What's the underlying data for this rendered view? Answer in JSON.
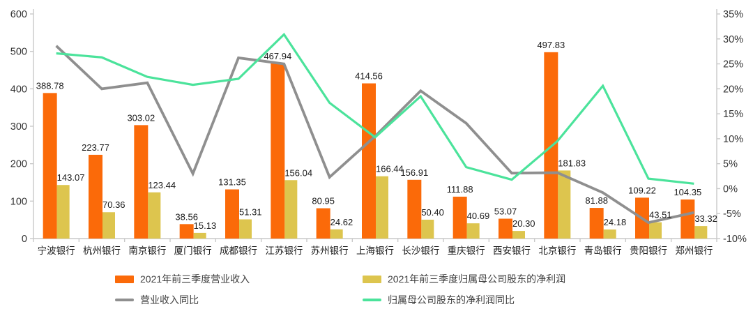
{
  "chart_data": {
    "type": "bar",
    "subtype": "combo-bar-line-dual-axis",
    "title": "",
    "categories": [
      "宁波银行",
      "杭州银行",
      "南京银行",
      "厦门银行",
      "成都银行",
      "江苏银行",
      "苏州银行",
      "上海银行",
      "长沙银行",
      "重庆银行",
      "西安银行",
      "北京银行",
      "青岛银行",
      "贵阳银行",
      "郑州银行"
    ],
    "series": [
      {
        "name": "2021年前三季度营业收入",
        "type": "bar",
        "axis": "left",
        "color": "#fb6a09",
        "values": [
          388.78,
          223.77,
          303.02,
          38.56,
          131.35,
          467.94,
          80.95,
          414.56,
          156.91,
          111.88,
          53.07,
          497.83,
          81.88,
          109.22,
          104.35
        ],
        "value_labels": [
          "388.78",
          "223.77",
          "303.02",
          "38.56",
          "131.35",
          "467.94",
          "80.95",
          "414.56",
          "156.91",
          "111.88",
          "53.07",
          "497.83",
          "81.88",
          "109.22",
          "104.35"
        ]
      },
      {
        "name": "2021年前三季度归属母公司股东的净利润",
        "type": "bar",
        "axis": "left",
        "color": "#ddc54e",
        "values": [
          143.07,
          70.36,
          123.44,
          15.13,
          51.31,
          156.04,
          24.62,
          166.44,
          50.4,
          40.69,
          20.3,
          181.83,
          24.18,
          43.51,
          33.32
        ],
        "value_labels": [
          "143.07",
          "70.36",
          "123.44",
          "15.13",
          "51.31",
          "156.04",
          "24.62",
          "166.44",
          "50.40",
          "40.69",
          "20.30",
          "181.83",
          "24.18",
          "43.51",
          "33.32"
        ]
      },
      {
        "name": "营业收入同比",
        "type": "line",
        "axis": "right",
        "color": "#8f8f8f",
        "stroke_width": 3.8,
        "values_pct_estimated": [
          28.6,
          20.0,
          21.2,
          3.0,
          26.2,
          25.0,
          2.3,
          10.5,
          19.6,
          13.1,
          3.1,
          3.2,
          -0.8,
          -6.8,
          -4.8
        ]
      },
      {
        "name": "归属母公司股东的净利润同比",
        "type": "line",
        "axis": "right",
        "color": "#4be39b",
        "stroke_width": 3.2,
        "values_pct_estimated": [
          27.1,
          26.3,
          22.4,
          20.8,
          22.0,
          30.9,
          17.2,
          10.3,
          18.5,
          4.3,
          1.8,
          9.5,
          20.6,
          2.0,
          1.0
        ]
      }
    ],
    "left_axis": {
      "min": 0,
      "max": 600,
      "tick_step": 100,
      "tick_labels": [
        "0",
        "100",
        "200",
        "300",
        "400",
        "500",
        "600"
      ]
    },
    "right_axis": {
      "min": -10,
      "max": 35,
      "tick_step": 5,
      "tick_labels": [
        "-10%",
        "-5%",
        "0%",
        "5%",
        "10%",
        "15%",
        "20%",
        "25%",
        "30%",
        "35%"
      ]
    },
    "grid": "off",
    "legend_position": "bottom",
    "bar_value_labels": true
  },
  "colors": {
    "background": "#ffffff",
    "axis_line": "#c9c9c9",
    "axis_tick_text": "#333333",
    "bar_label_text": "#1a1a1a",
    "category_text": "#1a1a1a",
    "legend_text": "#404040"
  }
}
